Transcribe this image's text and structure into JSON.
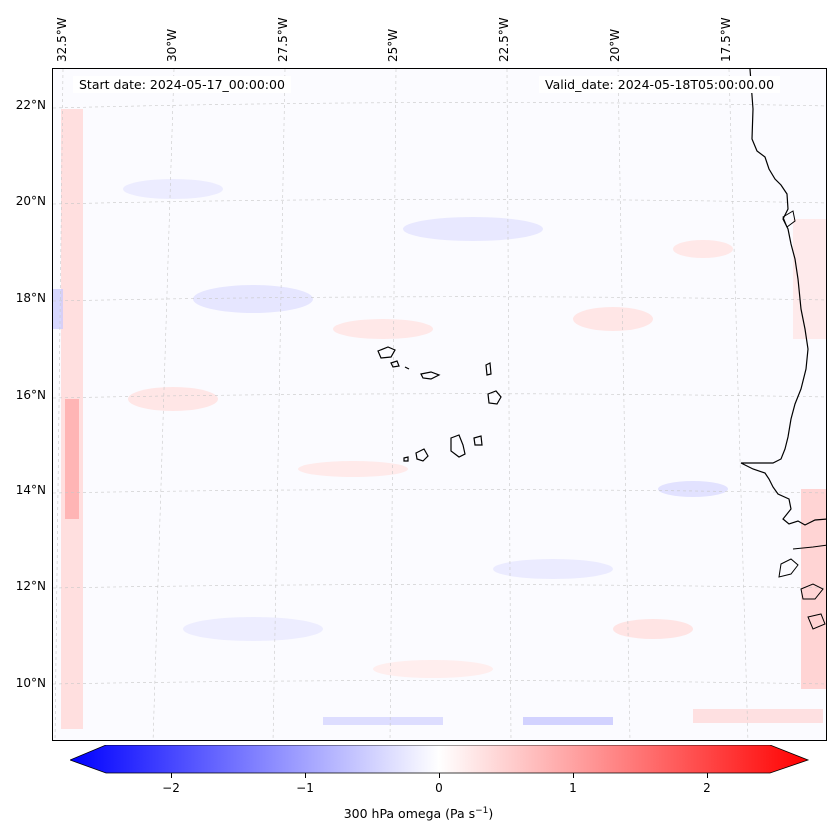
{
  "map": {
    "start_date": "Start date: 2024-05-17_00:00:00",
    "valid_date": "Valid_date: 2024-05-18T05:00:00.00",
    "lon_labels": [
      "32.5°W",
      "30°W",
      "27.5°W",
      "25°W",
      "22.5°W",
      "20°W",
      "17.5°W"
    ],
    "lat_labels": [
      "22°N",
      "20°N",
      "18°N",
      "16°N",
      "14°N",
      "12°N",
      "10°N"
    ],
    "colors": {
      "negative": "#0000ff",
      "positive": "#ff0000",
      "background": "#fbfbff",
      "coastline": "#000000",
      "gridline": "#bbbbbb"
    }
  },
  "colorbar": {
    "label_prefix": "300 hPa omega (Pa s",
    "label_exp": "−1",
    "label_suffix": ")",
    "ticks": [
      "−2",
      "−1",
      "0",
      "1",
      "2"
    ],
    "min": -2.5,
    "max": 2.5,
    "extend": "both"
  }
}
